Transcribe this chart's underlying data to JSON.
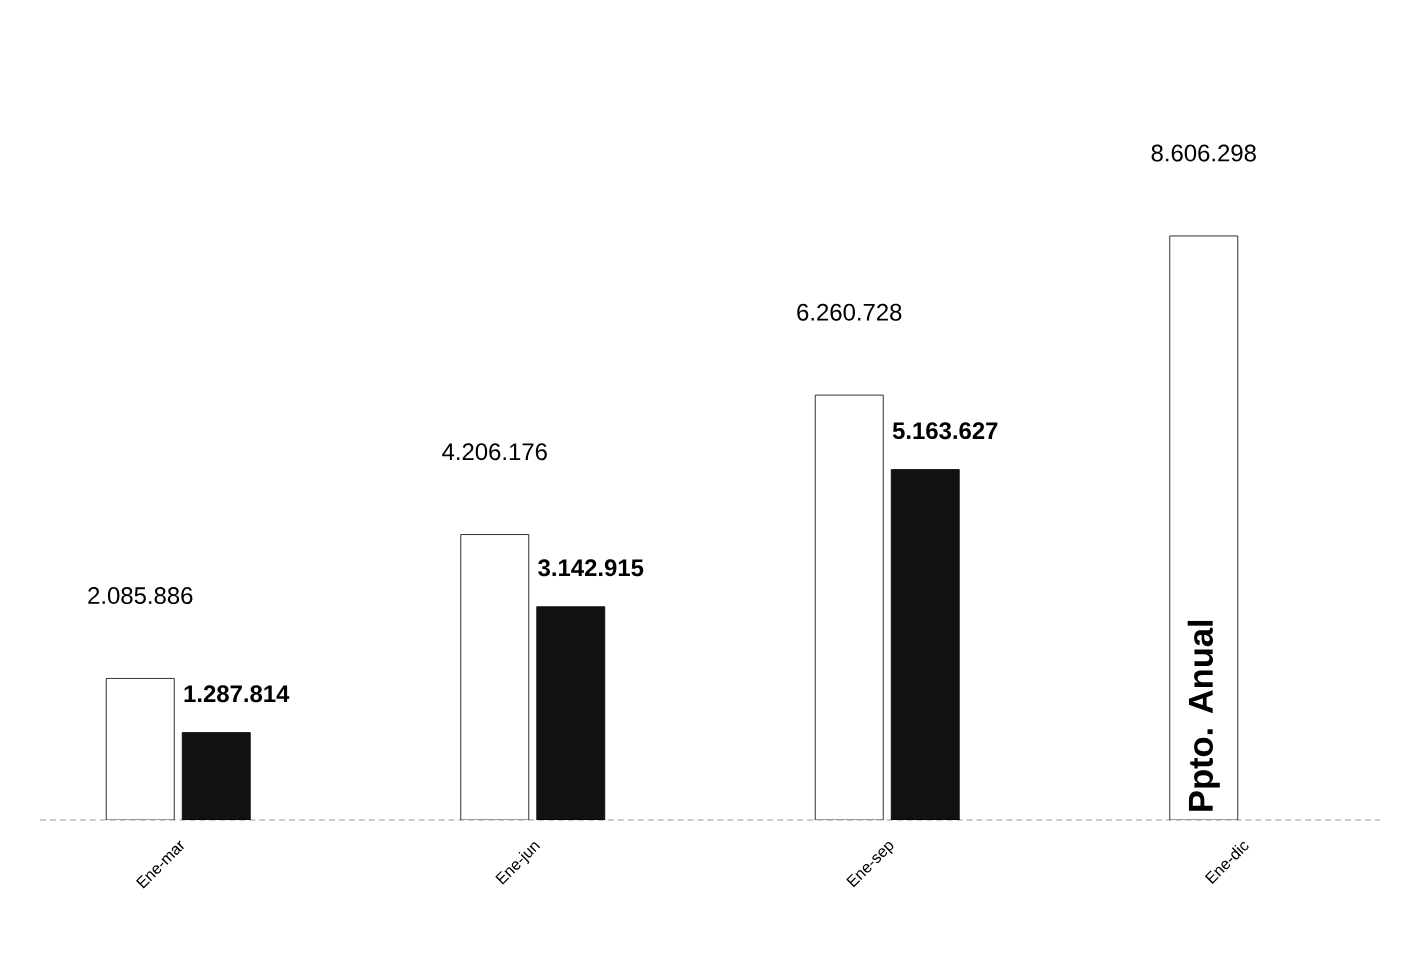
{
  "chart_data": {
    "type": "bar",
    "categories": [
      "Ene-mar",
      "Ene-jun",
      "Ene-sep",
      "Ene-dic"
    ],
    "series": [
      {
        "color": "#ffffff",
        "values": [
          2085886,
          4206176,
          6260728,
          8606298
        ],
        "value_labels": [
          "2.085.886",
          "4.206.176",
          "6.260.728",
          "8.606.298"
        ]
      },
      {
        "color": "#111111",
        "values": [
          1287814,
          3142915,
          5163627,
          null
        ],
        "value_labels": [
          "1.287.814",
          "3.142.915",
          "5.163.627",
          null
        ]
      }
    ],
    "annotations": [
      "Ppto. Anual"
    ]
  }
}
